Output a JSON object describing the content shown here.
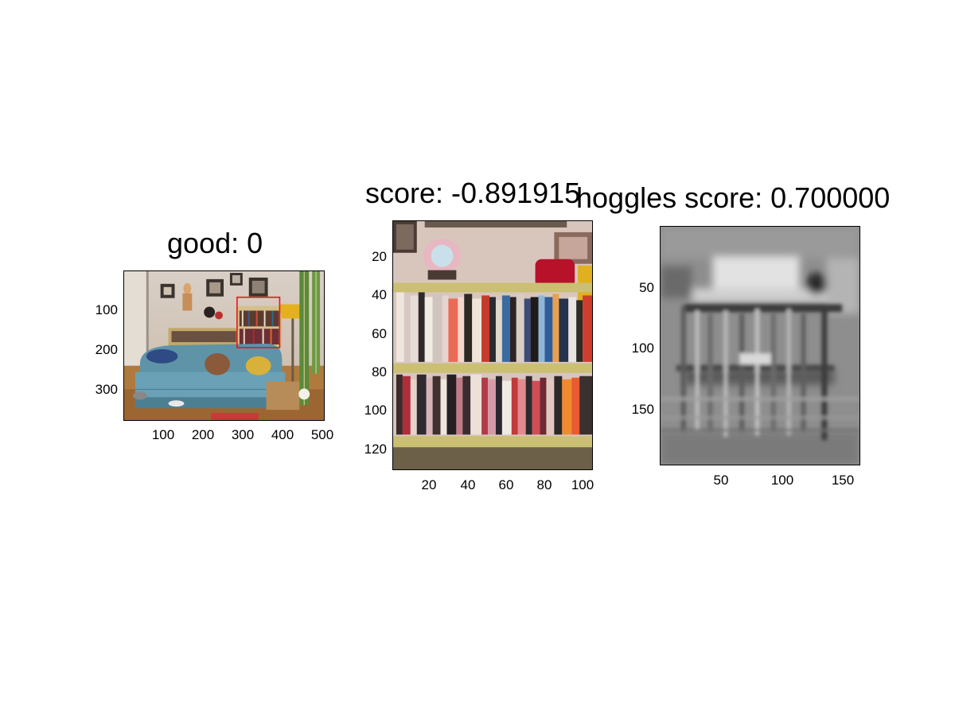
{
  "panels": [
    {
      "title": "good: 0",
      "image": "living-room-photo",
      "yticks": [
        "100",
        "200",
        "300"
      ],
      "xticks": [
        "100",
        "200",
        "300",
        "400",
        "500"
      ]
    },
    {
      "title": "score: -0.891915",
      "image": "bookshelf-crop",
      "yticks": [
        "20",
        "40",
        "60",
        "80",
        "100",
        "120"
      ],
      "xticks": [
        "20",
        "40",
        "60",
        "80",
        "100"
      ]
    },
    {
      "title": "hoggles score: 0.700000",
      "image": "hoggles-grayscale-reconstruction",
      "yticks": [
        "50",
        "100",
        "150"
      ],
      "xticks": [
        "50",
        "100",
        "150"
      ]
    }
  ],
  "colors": {
    "detection_box": "#e8141a",
    "axis": "#000000",
    "background": "#ffffff"
  }
}
